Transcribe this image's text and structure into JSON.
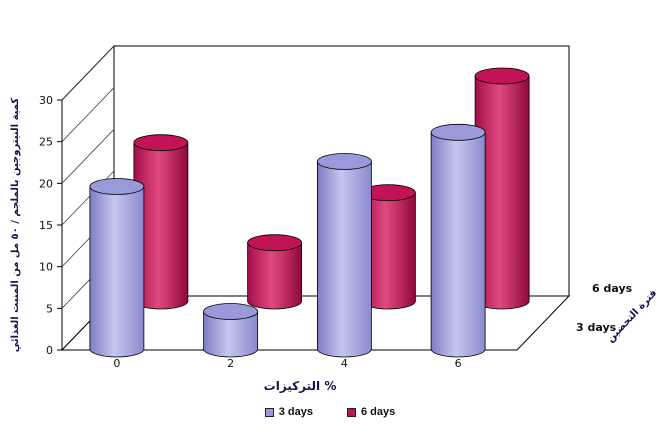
{
  "chart_data": {
    "type": "bar",
    "style": "3d-cylinder",
    "title": "",
    "categories": [
      "0",
      "2",
      "4",
      "6"
    ],
    "series": [
      {
        "name": "3 days",
        "values": [
          19.5,
          4.5,
          22.5,
          26
        ],
        "swatch": "#9a9ade",
        "body": [
          "#7d7dc3",
          "#c6c6f0",
          "#8a8ace"
        ],
        "top": "#9a9ada"
      },
      {
        "name": "6 days",
        "values": [
          19,
          7,
          13,
          27
        ],
        "swatch": "#c01355",
        "body": [
          "#a40d48",
          "#e04a7e",
          "#90083c"
        ],
        "top": "#c11355"
      }
    ],
    "xlabel": "التركيزات %",
    "ylabel": "كمية النيتروجين بالملجم / ٥٠ مل من المنبت الغذائي",
    "depth_axis_label": "فترة التحضين",
    "depth_labels": [
      "3 days",
      "6 days"
    ],
    "ylim": [
      0,
      30
    ],
    "yticks": [
      0,
      5,
      10,
      15,
      20,
      25,
      30
    ],
    "grid": "left-wall-only",
    "legend_position": "bottom",
    "colors": {
      "axis": "#000000",
      "label_text": "#15154f",
      "tick_text": "#111111"
    }
  }
}
